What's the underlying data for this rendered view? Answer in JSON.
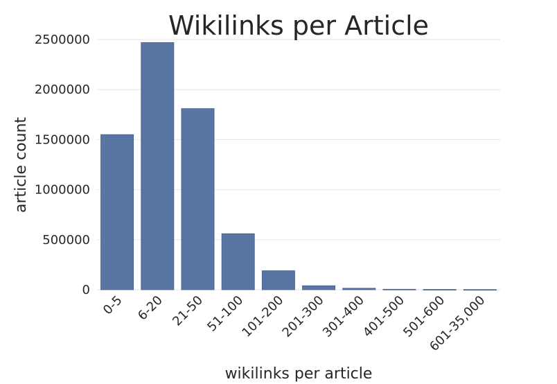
{
  "chart_data": {
    "type": "bar",
    "title": "Wikilinks per Article",
    "xlabel": "wikilinks per article",
    "ylabel": "article count",
    "categories": [
      "0-5",
      "6-20",
      "21-50",
      "51-100",
      "101-200",
      "201-300",
      "301-400",
      "401-500",
      "501-600",
      "601-35,000"
    ],
    "values": [
      1550000,
      2470000,
      1810000,
      560000,
      190000,
      40000,
      15000,
      5000,
      3000,
      2000
    ],
    "ylim": [
      0,
      2500000
    ],
    "yticks": [
      0,
      500000,
      1000000,
      1500000,
      2000000,
      2500000
    ],
    "grid": true,
    "legend": "none",
    "bar_color": "#5975a4"
  }
}
